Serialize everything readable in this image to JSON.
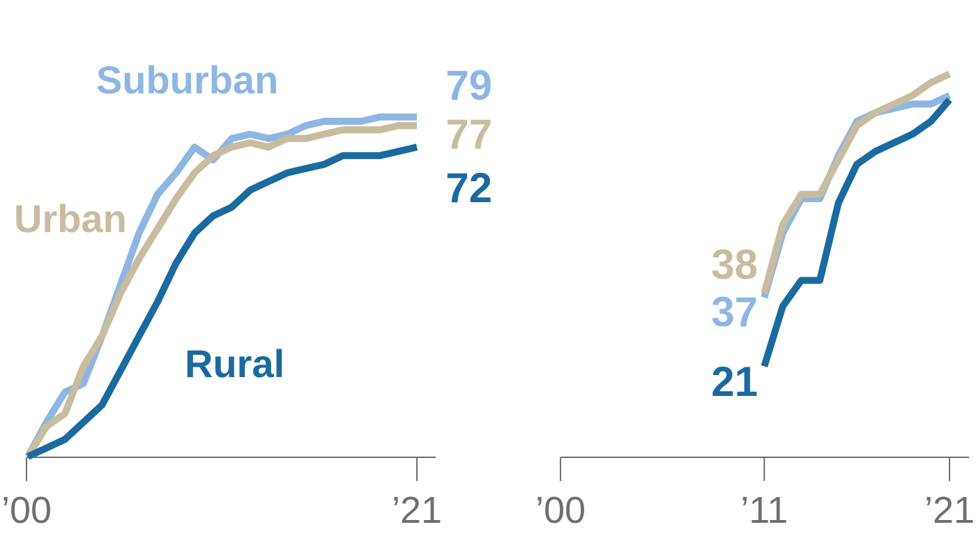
{
  "chart_data": [
    {
      "type": "line",
      "title": "",
      "xlabel": "",
      "ylabel": "",
      "xlim": [
        2000,
        2021
      ],
      "ylim": [
        0,
        90
      ],
      "grid": false,
      "x_tick_labels": [
        {
          "value": 2000,
          "label": "’00"
        },
        {
          "value": 2021,
          "label": "’21"
        }
      ],
      "series": [
        {
          "name": "Suburban",
          "key": "suburban",
          "color": "#8db6e2",
          "end_label": "79",
          "x": [
            2000,
            2001,
            2002,
            2003,
            2004,
            2005,
            2006,
            2007,
            2008,
            2009,
            2010,
            2011,
            2012,
            2013,
            2014,
            2015,
            2016,
            2017,
            2018,
            2019,
            2020,
            2021
          ],
          "values": [
            0,
            8,
            15,
            17,
            28,
            40,
            52,
            61,
            66,
            72,
            69,
            74,
            75,
            74,
            75,
            77,
            78,
            78,
            78,
            79,
            79,
            79
          ]
        },
        {
          "name": "Urban",
          "key": "urban",
          "color": "#c7bc9f",
          "end_label": "77",
          "x": [
            2000,
            2001,
            2002,
            2003,
            2004,
            2005,
            2006,
            2007,
            2008,
            2009,
            2010,
            2011,
            2012,
            2013,
            2014,
            2015,
            2016,
            2017,
            2018,
            2019,
            2020,
            2021
          ],
          "values": [
            0,
            7,
            10,
            21,
            28,
            38,
            46,
            53,
            60,
            66,
            70,
            72,
            73,
            72,
            74,
            74,
            75,
            76,
            76,
            76,
            77,
            77
          ]
        },
        {
          "name": "Rural",
          "key": "rural",
          "color": "#1b6a9f",
          "end_label": "72",
          "x": [
            2000,
            2001,
            2002,
            2003,
            2004,
            2005,
            2006,
            2007,
            2008,
            2009,
            2010,
            2011,
            2012,
            2013,
            2014,
            2015,
            2016,
            2017,
            2018,
            2019,
            2020,
            2021
          ],
          "values": [
            0,
            2,
            4,
            8,
            12,
            20,
            28,
            36,
            45,
            52,
            56,
            58,
            62,
            64,
            66,
            67,
            68,
            70,
            70,
            70,
            71,
            72
          ]
        }
      ]
    },
    {
      "type": "line",
      "title": "",
      "xlabel": "",
      "ylabel": "",
      "xlim": [
        2000,
        2021
      ],
      "ylim": [
        0,
        90
      ],
      "grid": false,
      "x_tick_labels": [
        {
          "value": 2000,
          "label": "’00"
        },
        {
          "value": 2011,
          "label": "’11"
        },
        {
          "value": 2021,
          "label": "’21"
        }
      ],
      "series": [
        {
          "name": "Suburban",
          "key": "suburban",
          "color": "#8db6e2",
          "start_label": "37",
          "x": [
            2011,
            2012,
            2013,
            2014,
            2015,
            2016,
            2017,
            2018,
            2019,
            2020,
            2021
          ],
          "values": [
            37,
            52,
            60,
            60,
            70,
            78,
            80,
            81,
            82,
            82,
            84
          ]
        },
        {
          "name": "Urban",
          "key": "urban",
          "color": "#c7bc9f",
          "start_label": "38",
          "x": [
            2011,
            2012,
            2013,
            2014,
            2015,
            2016,
            2017,
            2018,
            2019,
            2020,
            2021
          ],
          "values": [
            38,
            54,
            61,
            61,
            69,
            77,
            80,
            82,
            84,
            87,
            89
          ]
        },
        {
          "name": "Rural",
          "key": "rural",
          "color": "#1b6a9f",
          "start_label": "21",
          "x": [
            2011,
            2012,
            2013,
            2014,
            2015,
            2016,
            2017,
            2018,
            2019,
            2020,
            2021
          ],
          "values": [
            21,
            35,
            41,
            41,
            59,
            68,
            71,
            73,
            75,
            78,
            83
          ]
        }
      ]
    }
  ],
  "colors": {
    "axis": "#6f6f6f",
    "tick_text": "#6f6f6f"
  }
}
